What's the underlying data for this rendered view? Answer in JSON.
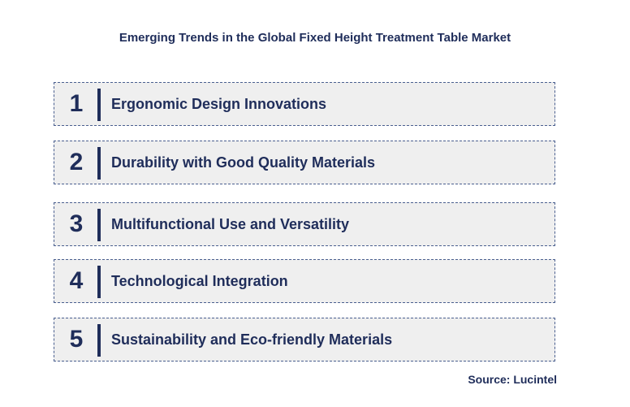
{
  "title": "Emerging Trends in the Global Fixed Height Treatment Table Market",
  "trends": [
    {
      "number": "1",
      "label": "Ergonomic Design Innovations"
    },
    {
      "number": "2",
      "label": "Durability with Good Quality Materials"
    },
    {
      "number": "3",
      "label": "Multifunctional Use and Versatility"
    },
    {
      "number": "4",
      "label": "Technological Integration"
    },
    {
      "number": "5",
      "label": "Sustainability and Eco-friendly Materials"
    }
  ],
  "source": "Source: Lucintel",
  "colors": {
    "text": "#1f2d5a",
    "box_fill": "#efefef",
    "box_border": "#4a5f8f"
  }
}
